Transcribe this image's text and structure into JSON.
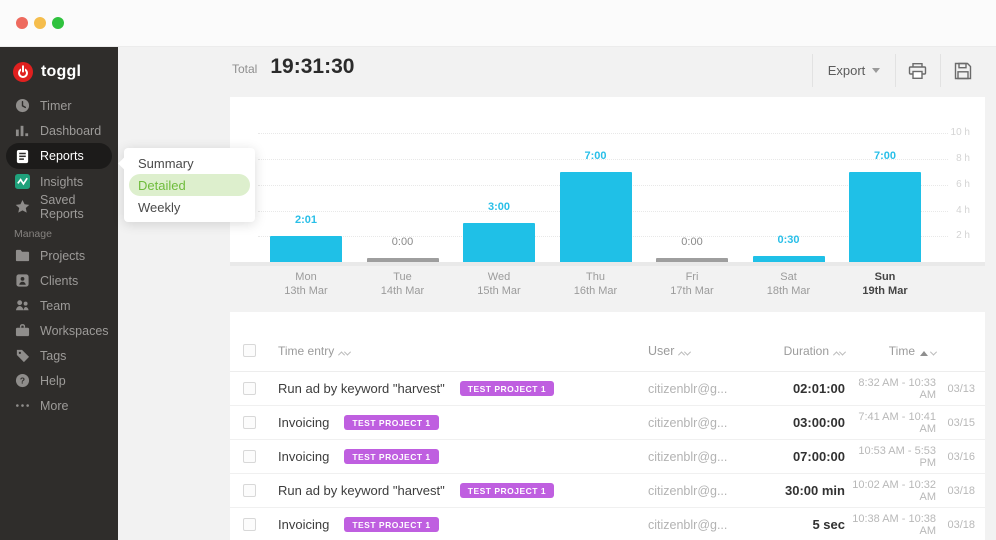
{
  "sidebar": {
    "logo": "toggl",
    "items": [
      {
        "label": "Timer"
      },
      {
        "label": "Dashboard"
      },
      {
        "label": "Reports",
        "active": true
      },
      {
        "label": "Insights"
      },
      {
        "label": "Saved Reports"
      }
    ],
    "manage_label": "Manage",
    "manage_items": [
      {
        "label": "Projects"
      },
      {
        "label": "Clients"
      },
      {
        "label": "Team"
      },
      {
        "label": "Workspaces"
      },
      {
        "label": "Tags"
      },
      {
        "label": "Help"
      },
      {
        "label": "More"
      }
    ]
  },
  "flyout": {
    "items": [
      {
        "label": "Summary"
      },
      {
        "label": "Detailed",
        "active": true
      },
      {
        "label": "Weekly"
      }
    ]
  },
  "header": {
    "total_label": "Total",
    "total_value": "19:31:30",
    "export_label": "Export"
  },
  "chart_data": {
    "type": "bar",
    "ylabel": "hours",
    "ylim": [
      0,
      11
    ],
    "grid": true,
    "y_ticks": [
      "10 h",
      "8 h",
      "6 h",
      "4 h",
      "2 h"
    ],
    "bar_color": "#1fc0e7",
    "zero_bar_color": "#9e9e9e",
    "days": [
      {
        "day": "Mon",
        "date": "13th Mar",
        "value": "2:01",
        "hours": 2.02
      },
      {
        "day": "Tue",
        "date": "14th Mar",
        "value": "0:00",
        "hours": 0
      },
      {
        "day": "Wed",
        "date": "15th Mar",
        "value": "3:00",
        "hours": 3
      },
      {
        "day": "Thu",
        "date": "16th Mar",
        "value": "7:00",
        "hours": 7
      },
      {
        "day": "Fri",
        "date": "17th Mar",
        "value": "0:00",
        "hours": 0
      },
      {
        "day": "Sat",
        "date": "18th Mar",
        "value": "0:30",
        "hours": 0.5
      },
      {
        "day": "Sun",
        "date": "19th Mar",
        "value": "7:00",
        "hours": 7,
        "emphasis": true
      }
    ]
  },
  "table": {
    "headers": {
      "time_entry": "Time entry",
      "user": "User",
      "duration": "Duration",
      "time": "Time"
    },
    "rows": [
      {
        "description": "Run ad by keyword \"harvest\"",
        "project": "TEST PROJECT 1",
        "user": "citizenblr@g...",
        "duration": "02:01:00",
        "time_range": "8:32 AM - 10:33 AM",
        "date": "03/13"
      },
      {
        "description": "Invoicing",
        "project": "TEST PROJECT 1",
        "user": "citizenblr@g...",
        "duration": "03:00:00",
        "time_range": "7:41 AM - 10:41 AM",
        "date": "03/15"
      },
      {
        "description": "Invoicing",
        "project": "TEST PROJECT 1",
        "user": "citizenblr@g...",
        "duration": "07:00:00",
        "time_range": "10:53 AM - 5:53 PM",
        "date": "03/16"
      },
      {
        "description": "Run ad by keyword \"harvest\"",
        "project": "TEST PROJECT 1",
        "user": "citizenblr@g...",
        "duration": "30:00 min",
        "time_range": "10:02 AM - 10:32 AM",
        "date": "03/18"
      },
      {
        "description": "Invoicing",
        "project": "TEST PROJECT 1",
        "user": "citizenblr@g...",
        "duration": "5 sec",
        "time_range": "10:38 AM - 10:38 AM",
        "date": "03/18"
      }
    ]
  },
  "colors": {
    "accent_cyan": "#1fc0e7",
    "badge_purple": "#bf5fe0",
    "active_green": "#6fbc3c",
    "sidebar_bg": "#2f2d2b",
    "brand_red": "#e0201f"
  }
}
